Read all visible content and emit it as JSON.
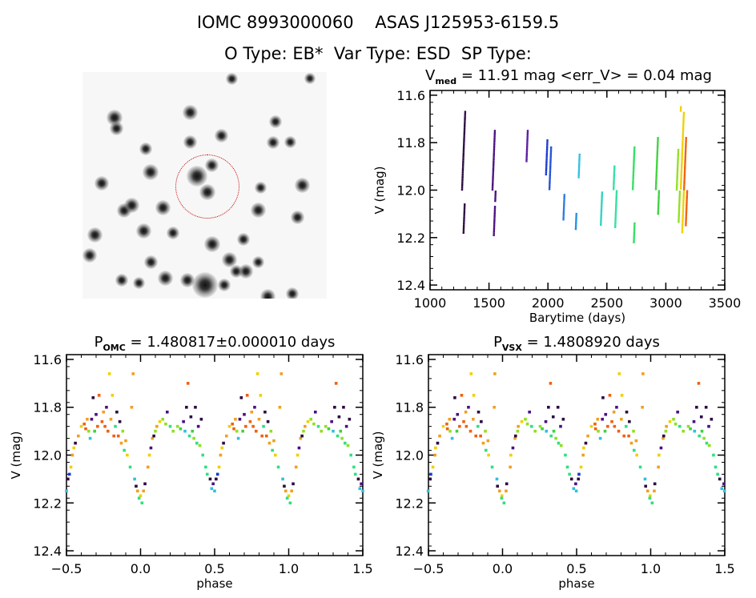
{
  "header": {
    "line1": "IOMC 8993000060    ASAS J125953-6159.5",
    "line2": "O Type: EB*  Var Type: ESD  SP Type:"
  },
  "image_panel": {
    "circle_color": "#cc0000",
    "stars": [
      [
        0.13,
        0.2,
        1.0
      ],
      [
        0.44,
        0.18,
        0.9
      ],
      [
        0.61,
        0.03,
        0.5
      ],
      [
        0.93,
        0.03,
        0.4
      ],
      [
        0.14,
        0.25,
        0.7
      ],
      [
        0.47,
        0.46,
        1.6
      ],
      [
        0.51,
        0.53,
        1.0
      ],
      [
        0.28,
        0.44,
        1.0
      ],
      [
        0.08,
        0.49,
        0.8
      ],
      [
        0.17,
        0.61,
        0.8
      ],
      [
        0.2,
        0.59,
        0.9
      ],
      [
        0.33,
        0.6,
        0.9
      ],
      [
        0.25,
        0.7,
        0.9
      ],
      [
        0.05,
        0.72,
        0.9
      ],
      [
        0.03,
        0.81,
        0.8
      ],
      [
        0.28,
        0.84,
        0.7
      ],
      [
        0.53,
        0.76,
        1.0
      ],
      [
        0.6,
        0.83,
        0.9
      ],
      [
        0.67,
        0.88,
        0.8
      ],
      [
        0.34,
        0.91,
        0.9
      ],
      [
        0.5,
        0.94,
        2.2
      ],
      [
        0.43,
        0.92,
        0.8
      ],
      [
        0.58,
        0.94,
        0.6
      ],
      [
        0.72,
        0.61,
        0.9
      ],
      [
        0.88,
        0.64,
        0.7
      ],
      [
        0.9,
        0.5,
        0.9
      ],
      [
        0.78,
        0.31,
        0.6
      ],
      [
        0.57,
        0.28,
        0.7
      ],
      [
        0.53,
        0.41,
        0.7
      ],
      [
        0.44,
        0.31,
        0.7
      ],
      [
        0.26,
        0.34,
        0.6
      ],
      [
        0.79,
        0.22,
        0.6
      ],
      [
        0.85,
        0.31,
        0.5
      ],
      [
        0.73,
        0.51,
        0.5
      ],
      [
        0.63,
        0.88,
        0.6
      ],
      [
        0.16,
        0.92,
        0.6
      ],
      [
        0.76,
        0.99,
        0.9
      ],
      [
        0.86,
        0.98,
        0.6
      ],
      [
        0.66,
        0.74,
        0.6
      ],
      [
        0.72,
        0.84,
        0.5
      ],
      [
        0.23,
        0.93,
        0.5
      ],
      [
        0.37,
        0.71,
        0.6
      ]
    ]
  },
  "chart_data": [
    {
      "id": "timeseries",
      "type": "scatter",
      "title": {
        "main": "V",
        "sub": "med",
        "rest": " = 11.91 mag <err_V> = 0.04 mag"
      },
      "xlabel": "Barytime (days)",
      "ylabel": "V (mag)",
      "xlim": [
        1000,
        3500
      ],
      "ylim": [
        12.42,
        11.58
      ],
      "xticks": [
        1000,
        1500,
        2000,
        2500,
        3000,
        3500
      ],
      "xtick_labels": [
        "1000",
        "1500",
        "2000",
        "2500",
        "3000",
        "3500"
      ],
      "yticks": [
        11.6,
        11.8,
        12.0,
        12.2,
        12.4
      ],
      "ytick_labels": [
        "11.6",
        "11.8",
        "12.0",
        "12.2",
        "12.4"
      ],
      "xminor": 100,
      "yminor": 0.05,
      "seasons": [
        {
          "t": 1285,
          "v": [
            [
              11.67,
              12.0
            ],
            [
              12.06,
              12.18
            ]
          ],
          "color": "#2b0b3f"
        },
        {
          "t": 1543,
          "v": [
            [
              11.75,
              12.05
            ],
            [
              12.07,
              12.19
            ]
          ],
          "color": "#4a1080"
        },
        {
          "t": 1822,
          "v": [
            [
              11.75,
              11.88
            ]
          ],
          "color": "#5a1aa0"
        },
        {
          "t": 1992,
          "v": [
            [
              11.79,
              11.94
            ]
          ],
          "color": "#1a3ad0"
        },
        {
          "t": 2026,
          "v": [
            [
              11.82,
              12.0
            ]
          ],
          "color": "#2050d8"
        },
        {
          "t": 2128,
          "v": [
            [
              12.02,
              12.13
            ]
          ],
          "color": "#2a7ae0"
        },
        {
          "t": 2236,
          "v": [
            [
              12.1,
              12.17
            ]
          ],
          "color": "#2090e0"
        },
        {
          "t": 2270,
          "v": [
            [
              11.85,
              11.95
            ]
          ],
          "color": "#30c0e0"
        },
        {
          "t": 2447,
          "v": [
            [
              12.01,
              12.15
            ]
          ],
          "color": "#30d0c0"
        },
        {
          "t": 2570,
          "v": [
            [
              11.9,
              12.16
            ]
          ],
          "color": "#30e0a0"
        },
        {
          "t": 2733,
          "v": [
            [
              11.82,
              12.0
            ],
            [
              12.14,
              12.22
            ]
          ],
          "color": "#30e060"
        },
        {
          "t": 2929,
          "v": [
            [
              11.78,
              12.1
            ]
          ],
          "color": "#40d040"
        },
        {
          "t": 3106,
          "v": [
            [
              11.83,
              12.14
            ]
          ],
          "color": "#90e020"
        },
        {
          "t": 3140,
          "v": [
            [
              11.65,
              12.18
            ]
          ],
          "color": "#f0d000"
        },
        {
          "t": 3168,
          "v": [
            [
              11.78,
              12.15
            ]
          ],
          "color": "#f06010"
        }
      ]
    },
    {
      "id": "phase_omc",
      "type": "scatter",
      "title": {
        "main": "P",
        "sub": "OMC",
        "rest": " = 1.480817±0.000010 days"
      },
      "xlabel": "phase",
      "ylabel": "V (mag)",
      "xlim": [
        -0.5,
        1.5
      ],
      "ylim": [
        12.42,
        11.58
      ],
      "xticks": [
        -0.5,
        0.0,
        0.5,
        1.0,
        1.5
      ],
      "xtick_labels": [
        "-0.5",
        "0.0",
        "0.5",
        "1.0",
        "1.5"
      ],
      "yticks": [
        11.6,
        11.8,
        12.0,
        12.2,
        12.4
      ],
      "ytick_labels": [
        "11.6",
        "11.8",
        "12.0",
        "12.2",
        "12.4"
      ],
      "xminor": 0.1,
      "yminor": 0.05,
      "period_days": 1.480817,
      "period_err": 1e-05
    },
    {
      "id": "phase_vsx",
      "type": "scatter",
      "title": {
        "main": "P",
        "sub": "VSX",
        "rest": " = 1.4808920 days"
      },
      "xlabel": "phase",
      "ylabel": "V (mag)",
      "xlim": [
        -0.5,
        1.5
      ],
      "ylim": [
        12.42,
        11.58
      ],
      "xticks": [
        -0.5,
        0.0,
        0.5,
        1.0,
        1.5
      ],
      "xtick_labels": [
        "-0.5",
        "0.0",
        "0.5",
        "1.0",
        "1.5"
      ],
      "yticks": [
        11.6,
        11.8,
        12.0,
        12.2,
        12.4
      ],
      "ytick_labels": [
        "11.6",
        "11.8",
        "12.0",
        "12.2",
        "12.4"
      ],
      "xminor": 0.1,
      "yminor": 0.05,
      "period_days": 1.480892
    }
  ],
  "palette": [
    "#2b0b3f",
    "#4a1080",
    "#1a3ad0",
    "#30c0e0",
    "#30e080",
    "#40d040",
    "#90e020",
    "#f0d000",
    "#f0a020",
    "#f06010"
  ],
  "phase_points": [
    [
      0.0,
      12.17,
      7
    ],
    [
      0.01,
      12.2,
      4
    ],
    [
      0.02,
      12.15,
      8
    ],
    [
      0.03,
      12.12,
      0
    ],
    [
      0.05,
      12.05,
      8
    ],
    [
      0.06,
      12.0,
      7
    ],
    [
      0.07,
      11.97,
      1
    ],
    [
      0.08,
      11.93,
      8
    ],
    [
      0.09,
      11.92,
      0
    ],
    [
      0.1,
      11.9,
      6
    ],
    [
      0.11,
      11.88,
      8
    ],
    [
      0.13,
      11.86,
      7
    ],
    [
      0.15,
      11.85,
      6
    ],
    [
      0.17,
      11.87,
      6
    ],
    [
      0.18,
      11.82,
      1
    ],
    [
      0.2,
      11.88,
      4
    ],
    [
      0.22,
      11.9,
      6
    ],
    [
      0.25,
      11.88,
      6
    ],
    [
      0.27,
      11.89,
      5
    ],
    [
      0.29,
      11.86,
      1
    ],
    [
      0.3,
      11.9,
      3
    ],
    [
      0.31,
      11.8,
      0
    ],
    [
      0.32,
      11.7,
      9
    ],
    [
      0.33,
      11.92,
      4
    ],
    [
      0.34,
      11.84,
      0
    ],
    [
      0.35,
      11.9,
      5
    ],
    [
      0.36,
      11.93,
      6
    ],
    [
      0.37,
      11.8,
      0
    ],
    [
      0.38,
      11.95,
      4
    ],
    [
      0.39,
      11.88,
      1
    ],
    [
      0.4,
      11.96,
      6
    ],
    [
      0.41,
      11.85,
      0
    ],
    [
      0.42,
      12.0,
      4
    ],
    [
      0.44,
      12.05,
      4
    ],
    [
      0.45,
      12.08,
      4
    ],
    [
      0.47,
      12.1,
      0
    ],
    [
      0.48,
      12.14,
      3
    ],
    [
      0.49,
      12.12,
      1
    ],
    [
      0.5,
      12.15,
      3
    ],
    [
      0.51,
      12.1,
      0
    ],
    [
      0.52,
      12.08,
      2
    ],
    [
      0.53,
      12.05,
      7
    ],
    [
      0.54,
      12.0,
      8
    ],
    [
      0.55,
      11.97,
      7
    ],
    [
      0.56,
      11.95,
      0
    ],
    [
      0.58,
      11.92,
      8
    ],
    [
      0.6,
      11.88,
      7
    ],
    [
      0.62,
      11.87,
      9
    ],
    [
      0.63,
      11.89,
      9
    ],
    [
      0.64,
      11.85,
      8
    ],
    [
      0.65,
      11.9,
      6
    ],
    [
      0.66,
      11.93,
      3
    ],
    [
      0.67,
      11.85,
      1
    ],
    [
      0.68,
      11.76,
      0
    ],
    [
      0.69,
      11.9,
      5
    ],
    [
      0.7,
      11.83,
      1
    ],
    [
      0.71,
      11.88,
      9
    ],
    [
      0.72,
      11.75,
      9
    ],
    [
      0.74,
      11.86,
      9
    ],
    [
      0.75,
      11.82,
      8
    ],
    [
      0.76,
      11.88,
      9
    ],
    [
      0.77,
      11.8,
      1
    ],
    [
      0.78,
      11.9,
      9
    ],
    [
      0.79,
      11.66,
      7
    ],
    [
      0.8,
      11.85,
      8
    ],
    [
      0.81,
      11.75,
      7
    ],
    [
      0.82,
      11.92,
      9
    ],
    [
      0.83,
      11.88,
      4
    ],
    [
      0.84,
      11.82,
      0
    ],
    [
      0.85,
      11.92,
      9
    ],
    [
      0.86,
      11.86,
      0
    ],
    [
      0.87,
      11.95,
      8
    ],
    [
      0.88,
      11.9,
      6
    ],
    [
      0.89,
      11.98,
      4
    ],
    [
      0.9,
      11.94,
      8
    ],
    [
      0.91,
      12.0,
      7
    ],
    [
      0.93,
      12.05,
      4
    ],
    [
      0.94,
      11.8,
      8
    ],
    [
      0.95,
      11.66,
      8
    ],
    [
      0.96,
      12.1,
      3
    ],
    [
      0.97,
      12.13,
      0
    ],
    [
      0.98,
      12.15,
      8
    ],
    [
      0.99,
      12.18,
      4
    ]
  ]
}
